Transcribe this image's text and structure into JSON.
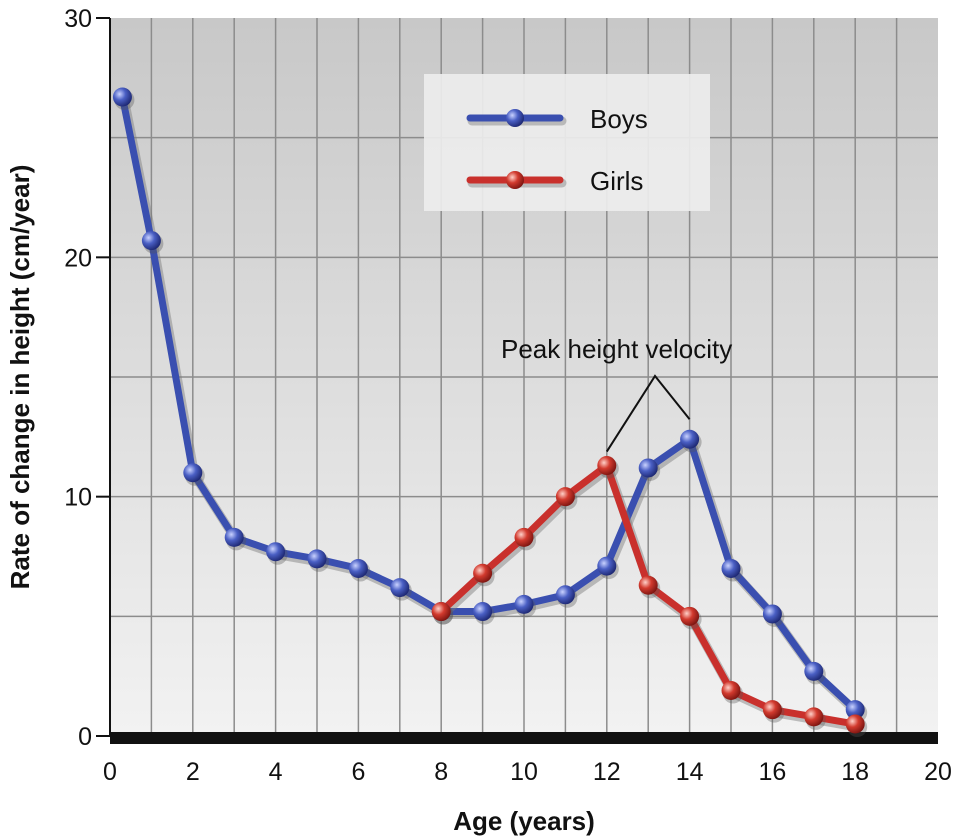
{
  "chart_data": {
    "type": "line",
    "title": "",
    "xlabel": "Age (years)",
    "ylabel": "Rate of change in height (cm/year)",
    "xlim": [
      0,
      20
    ],
    "ylim": [
      0,
      30
    ],
    "xticks": [
      0,
      2,
      4,
      6,
      8,
      10,
      12,
      14,
      16,
      18,
      20
    ],
    "yticks": [
      0,
      10,
      20,
      30
    ],
    "grid": true,
    "legend_position": "top-center",
    "series": [
      {
        "name": "Boys",
        "color": "#3a4fb0",
        "x": [
          0.3,
          1,
          2,
          3,
          4,
          5,
          6,
          7,
          8,
          9,
          10,
          11,
          12,
          13,
          14,
          15,
          16,
          17,
          18
        ],
        "y": [
          26.7,
          20.7,
          11.0,
          8.3,
          7.7,
          7.4,
          7.0,
          6.2,
          5.2,
          5.2,
          5.5,
          5.9,
          7.1,
          11.2,
          12.4,
          7.0,
          5.1,
          2.7,
          1.1
        ]
      },
      {
        "name": "Girls",
        "color": "#c9302c",
        "x": [
          8,
          9,
          10,
          11,
          12,
          13,
          14,
          15,
          16,
          17,
          18
        ],
        "y": [
          5.2,
          6.8,
          8.3,
          10.0,
          11.3,
          6.3,
          5.0,
          1.9,
          1.1,
          0.8,
          0.5
        ]
      }
    ],
    "annotations": [
      {
        "text": "Peak height velocity",
        "targets": [
          [
            12,
            11.3
          ],
          [
            14,
            12.4
          ]
        ]
      }
    ]
  }
}
